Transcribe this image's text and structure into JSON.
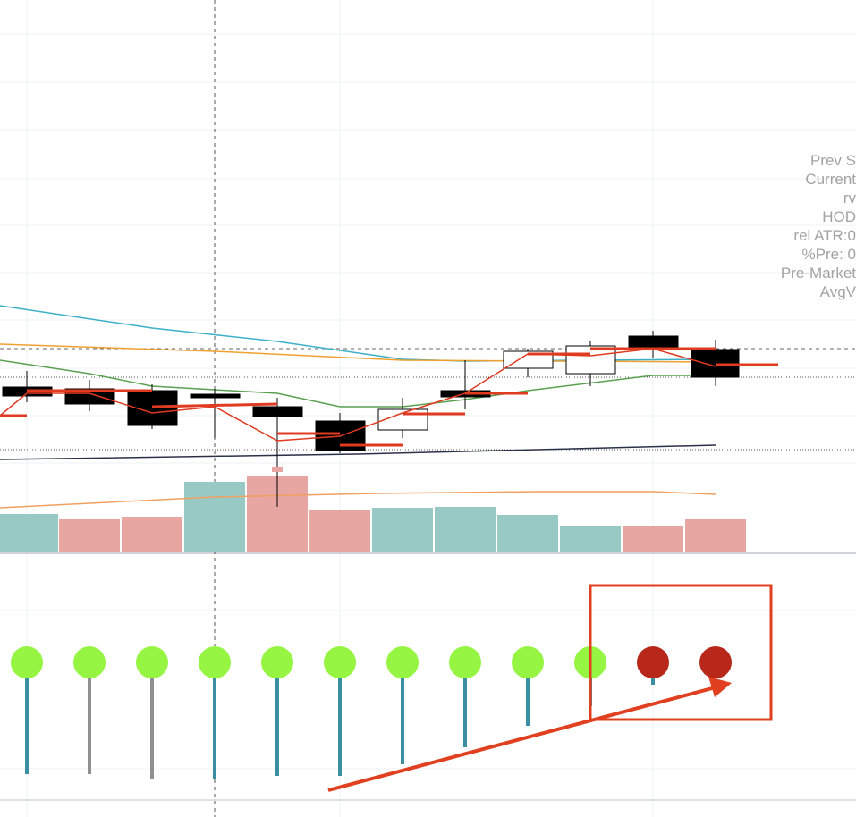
{
  "info_panel": {
    "lines": [
      "Prev S",
      "Current",
      "rv",
      "HOD",
      "rel ATR:0",
      "%Pre: 0",
      "Pre-Market",
      "AvgV"
    ]
  }
}
